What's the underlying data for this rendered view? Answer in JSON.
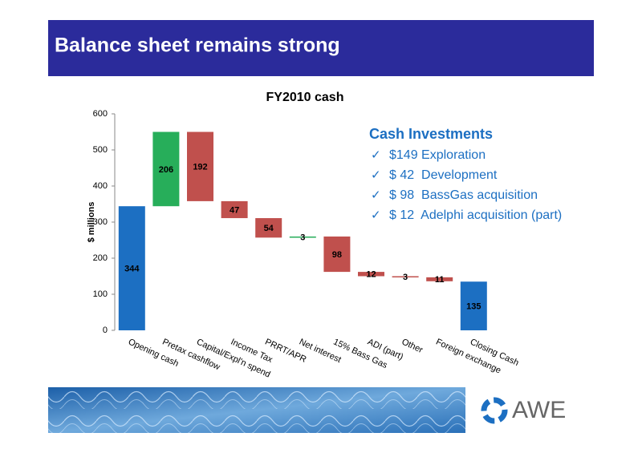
{
  "slide_title": "Balance sheet remains strong",
  "logo_text": "AWE",
  "chart_data": {
    "type": "waterfall",
    "title": "FY2010 cash",
    "y_label": "$ millions",
    "categories": [
      "Opening cash",
      "Pretax cashflow",
      "Capital/Expl'n spend",
      "Income Tax",
      "PRRT/APR",
      "Net interest",
      "15% Bass Gas",
      "ADI (part)",
      "Other",
      "Foreign exchange",
      "Closing Cash"
    ],
    "values": [
      344,
      206,
      -192,
      -47,
      -54,
      3,
      -98,
      -12,
      -3,
      -11,
      135
    ],
    "value_labels": [
      "344",
      "206",
      "192",
      "47",
      "54",
      "3",
      "98",
      "12",
      "3",
      "11",
      "135"
    ],
    "colors": [
      "#1c6fc2",
      "#27ae5a",
      "#c0504d",
      "#c0504d",
      "#c0504d",
      "#27ae5a",
      "#c0504d",
      "#c0504d",
      "#c0504d",
      "#c0504d",
      "#1c6fc2"
    ],
    "ylim": [
      0,
      600
    ],
    "yticks": [
      0,
      100,
      200,
      300,
      400,
      500,
      600
    ],
    "annotation": {
      "title": "Cash Investments",
      "items": [
        "$149 Exploration",
        "$ 42  Development",
        "$ 98  BassGas acquisition",
        "$ 12  Adelphi acquisition (part)"
      ]
    }
  }
}
